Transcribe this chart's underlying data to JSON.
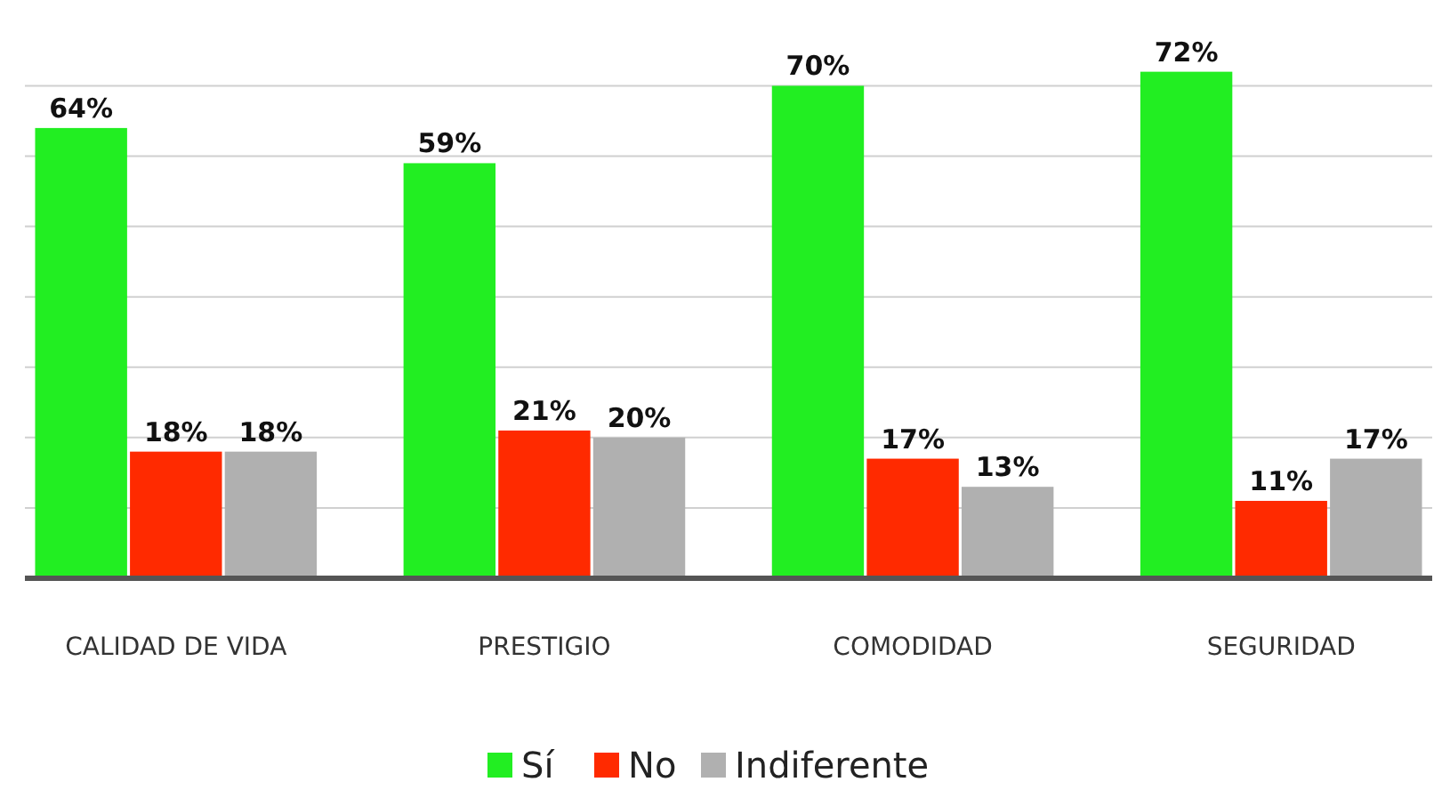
{
  "chart_data": {
    "type": "bar",
    "categories": [
      "CALIDAD DE VIDA",
      "PRESTIGIO",
      "COMODIDAD",
      "SEGURIDAD"
    ],
    "series": [
      {
        "name": "Sí",
        "color": "#22ee22",
        "values": [
          64,
          59,
          70,
          72
        ],
        "value_labels": [
          "64%",
          "59%",
          "70%",
          "72%"
        ]
      },
      {
        "name": "No",
        "color": "#ff2a00",
        "values": [
          18,
          21,
          17,
          11
        ],
        "value_labels": [
          "18%",
          "21%",
          "17%",
          "11%"
        ]
      },
      {
        "name": "Indiferente",
        "color": "#b0b0b0",
        "values": [
          18,
          20,
          13,
          17
        ],
        "value_labels": [
          "18%",
          "20%",
          "13%",
          "17%"
        ]
      }
    ],
    "grid": "y",
    "legend": "bottom",
    "tick_labels": "x"
  }
}
